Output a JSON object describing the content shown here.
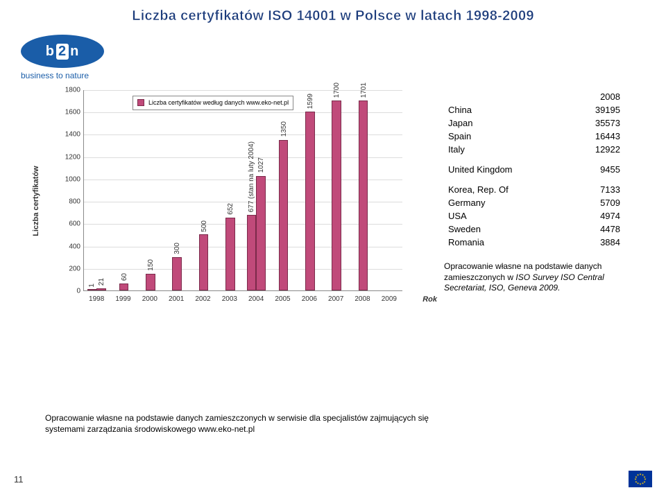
{
  "title": "Liczba certyfikatów ISO 14001 w Polsce w latach 1998-2009",
  "logo": {
    "b": "b",
    "two": "2",
    "n": "n",
    "sub": "business to nature"
  },
  "chart": {
    "type": "bar",
    "ylabel": "Liczba certyfikatów",
    "xlabel": "Rok",
    "ylim": [
      0,
      1800
    ],
    "ytick_step": 200,
    "yticks": [
      0,
      200,
      400,
      600,
      800,
      1000,
      1200,
      1400,
      1600,
      1800
    ],
    "bar_color": "#c04a7a",
    "bar_border": "#7a2a4a",
    "grid_color": "#dcdcdc",
    "background_color": "#ffffff",
    "bar_width": 0.35,
    "double_bar_years": [
      1998,
      2004
    ],
    "bars": [
      {
        "year": 1998,
        "values": [
          1,
          21
        ],
        "labels": [
          "1",
          "21"
        ]
      },
      {
        "year": 1999,
        "values": [
          60
        ],
        "labels": [
          "60"
        ]
      },
      {
        "year": 2000,
        "values": [
          150
        ],
        "labels": [
          "150"
        ]
      },
      {
        "year": 2001,
        "values": [
          300
        ],
        "labels": [
          "300"
        ]
      },
      {
        "year": 2002,
        "values": [
          500
        ],
        "labels": [
          "500"
        ]
      },
      {
        "year": 2003,
        "values": [
          652
        ],
        "labels": [
          "652"
        ]
      },
      {
        "year": 2004,
        "values": [
          677,
          1027
        ],
        "labels": [
          "677 (stan na luty 2004)",
          "1027"
        ]
      },
      {
        "year": 2005,
        "values": [
          1350
        ],
        "labels": [
          "1350"
        ]
      },
      {
        "year": 2006,
        "values": [
          1599
        ],
        "labels": [
          "1599"
        ]
      },
      {
        "year": 2007,
        "values": [
          1700
        ],
        "labels": [
          "1700"
        ]
      },
      {
        "year": 2008,
        "values": [
          1701
        ],
        "labels": [
          "1701"
        ]
      },
      {
        "year": 2009,
        "values": [
          null
        ],
        "labels": [
          ""
        ]
      }
    ],
    "legend": "Liczba certyfikatów według danych www.eko-net.pl"
  },
  "table": {
    "year": "2008",
    "rows1": [
      {
        "c": "China",
        "v": "39195"
      },
      {
        "c": "Japan",
        "v": "35573"
      },
      {
        "c": "Spain",
        "v": "16443"
      },
      {
        "c": "Italy",
        "v": "12922"
      }
    ],
    "rows2": [
      {
        "c": "United Kingdom",
        "v": "9455"
      }
    ],
    "rows3": [
      {
        "c": "Korea, Rep. Of",
        "v": "7133"
      },
      {
        "c": "Germany",
        "v": "5709"
      },
      {
        "c": "USA",
        "v": "4974"
      },
      {
        "c": "Sweden",
        "v": "4478"
      },
      {
        "c": "Romania",
        "v": "3884"
      }
    ]
  },
  "source": {
    "line1": "Opracowanie własne na podstawie danych zamieszczonych w ",
    "italic": "ISO Survey ISO Central Secretariat, ISO, Geneva 2009."
  },
  "footer": "Opracowanie własne na podstawie danych zamieszczonych w serwisie dla specjalistów zajmujących się systemami zarządzania środowiskowego www.eko-net.pl",
  "page": "11"
}
